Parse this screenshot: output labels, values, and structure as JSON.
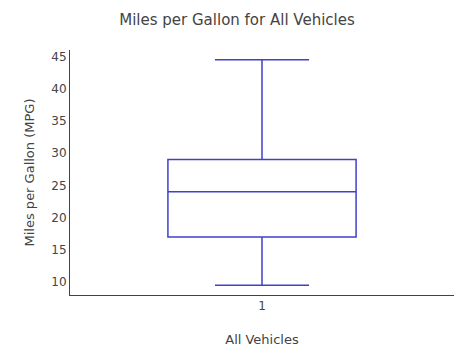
{
  "chart_data": {
    "type": "box",
    "title": "Miles per Gallon for All Vehicles",
    "xlabel": "All Vehicles",
    "ylabel": "Miles per Gallon (MPG)",
    "categories": [
      "1"
    ],
    "q1": [
      17.0
    ],
    "median": [
      24.0
    ],
    "q3": [
      29.0
    ],
    "whisker_low": [
      9.5
    ],
    "whisker_high": [
      44.5
    ],
    "color": "#4040CC",
    "ylim": [
      8,
      46
    ],
    "yticks": [
      10,
      15,
      20,
      25,
      30,
      35,
      40,
      45
    ],
    "grid": false
  }
}
